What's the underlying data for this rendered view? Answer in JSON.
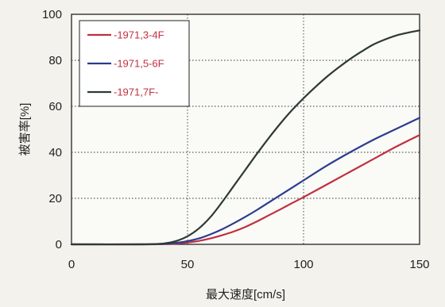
{
  "chart_data": {
    "type": "line",
    "title": "",
    "xlabel": "最大速度[cm/s]",
    "ylabel": "被害率[%]",
    "xlim": [
      0,
      150
    ],
    "ylim": [
      0,
      100
    ],
    "xticks": [
      0,
      50,
      100,
      150
    ],
    "yticks": [
      0,
      20,
      40,
      60,
      80,
      100
    ],
    "grid": true,
    "legend_position": "top-left",
    "legend_text_color": "#c0303f",
    "series": [
      {
        "name": "-1971,3-4F",
        "color": "#c0303f",
        "x": [
          0,
          30,
          40,
          45,
          50,
          55,
          60,
          65,
          70,
          75,
          80,
          85,
          90,
          95,
          100,
          110,
          120,
          130,
          140,
          150
        ],
        "values": [
          0,
          0,
          0.1,
          0.3,
          0.8,
          1.5,
          2.6,
          4.0,
          5.6,
          7.6,
          10.0,
          12.6,
          15.2,
          17.9,
          20.5,
          26.0,
          31.5,
          37.0,
          42.5,
          47.5
        ]
      },
      {
        "name": "-1971,5-6F",
        "color": "#2b3c8f",
        "x": [
          0,
          30,
          40,
          45,
          50,
          55,
          60,
          65,
          70,
          75,
          80,
          85,
          90,
          95,
          100,
          110,
          120,
          130,
          140,
          150
        ],
        "values": [
          0,
          0,
          0.2,
          0.6,
          1.4,
          2.6,
          4.4,
          6.6,
          9.2,
          12.0,
          15.0,
          18.2,
          21.4,
          24.6,
          27.8,
          34.2,
          40.0,
          45.4,
          50.2,
          55.0
        ]
      },
      {
        "name": "-1971,7F-",
        "color": "#2d3a31",
        "x": [
          0,
          30,
          40,
          45,
          50,
          55,
          60,
          65,
          70,
          75,
          80,
          85,
          90,
          95,
          100,
          105,
          110,
          115,
          120,
          125,
          130,
          135,
          140,
          145,
          150
        ],
        "values": [
          0,
          0,
          0.4,
          1.4,
          3.5,
          7.0,
          12.0,
          18.5,
          25.5,
          32.5,
          39.5,
          46.2,
          52.5,
          58.3,
          63.5,
          68.3,
          72.8,
          76.8,
          80.5,
          83.8,
          86.8,
          89.0,
          90.8,
          92.0,
          93.0
        ]
      }
    ]
  }
}
